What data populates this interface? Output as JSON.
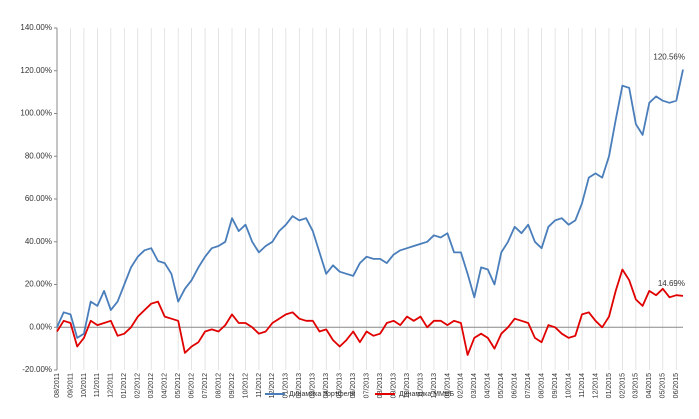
{
  "chart_data": {
    "type": "line",
    "categories": [
      "08/2011",
      null,
      "09/2011",
      null,
      "10/2011",
      null,
      "11/2011",
      null,
      "12/2011",
      null,
      "01/2012",
      null,
      "02/2012",
      null,
      "03/2012",
      null,
      "04/2012",
      null,
      "05/2012",
      null,
      "06/2012",
      null,
      "07/2012",
      null,
      "08/2012",
      null,
      "09/2012",
      null,
      "10/2012",
      null,
      "11/2012",
      null,
      "12/2012",
      null,
      "01/2013",
      null,
      "02/2013",
      null,
      "03/2013",
      null,
      "04/2013",
      null,
      "05/2013",
      null,
      "06/2013",
      null,
      "07/2013",
      null,
      "08/2013",
      null,
      "09/2013",
      null,
      "10/2013",
      null,
      "11/2013",
      null,
      "12/2013",
      null,
      "01/2014",
      null,
      "02/2014",
      null,
      "03/2014",
      null,
      "04/2014",
      null,
      "05/2014",
      null,
      "06/2014",
      null,
      "07/2014",
      null,
      "08/2014",
      null,
      "09/2014",
      null,
      "10/2014",
      null,
      "11/2014",
      null,
      "12/2014",
      null,
      "01/2015",
      null,
      "02/2015",
      null,
      "03/2015",
      null,
      "04/2015",
      null,
      "05/2015",
      null,
      "06/2015",
      null
    ],
    "series": [
      {
        "name": "Динамика портфеля",
        "color": "#4a7ebb",
        "values": [
          0,
          7,
          6,
          -5,
          -3,
          12,
          10,
          17,
          8,
          12,
          20,
          28,
          33,
          36,
          37,
          31,
          30,
          25,
          12,
          18,
          22,
          28,
          33,
          37,
          38,
          40,
          51,
          45,
          48,
          40,
          35,
          38,
          40,
          45,
          48,
          52,
          50,
          51,
          45,
          35,
          25,
          29,
          26,
          25,
          24,
          30,
          33,
          32,
          32,
          30,
          34,
          36,
          37,
          38,
          39,
          40,
          43,
          42,
          44,
          35,
          35,
          25,
          14,
          28,
          27,
          20,
          35,
          40,
          47,
          44,
          48,
          40,
          37,
          47,
          50,
          51,
          48,
          50,
          58,
          70,
          72,
          70,
          80,
          97,
          113,
          112,
          95,
          90,
          105,
          108,
          106,
          105,
          106,
          120.56
        ],
        "value_labels": [
          null,
          null,
          null,
          null,
          null,
          null,
          null,
          null,
          null,
          null,
          null,
          null,
          null,
          null,
          null,
          null,
          null,
          null,
          null,
          null,
          null,
          null,
          null,
          null,
          null,
          null,
          null,
          null,
          null,
          null,
          null,
          null,
          null,
          null,
          null,
          null,
          null,
          null,
          null,
          null,
          null,
          null,
          null,
          null,
          null,
          null,
          null,
          null,
          null,
          null,
          null,
          null,
          null,
          null,
          null,
          null,
          null,
          null,
          null,
          null,
          null,
          null,
          null,
          null,
          null,
          null,
          null,
          null,
          null,
          null,
          null,
          null,
          null,
          null,
          null,
          null,
          null,
          null,
          null,
          null,
          null,
          null,
          null,
          null,
          null,
          null,
          null,
          null,
          null,
          null,
          null,
          null,
          null,
          "120.56%"
        ]
      },
      {
        "name": "Динамика ММВБ",
        "color": "#e00000",
        "values": [
          -2,
          3,
          2,
          -9,
          -5,
          3,
          1,
          2,
          3,
          -4,
          -3,
          0,
          5,
          8,
          11,
          12,
          5,
          4,
          3,
          -12,
          -9,
          -7,
          -2,
          -1,
          -2,
          1,
          6,
          2,
          2,
          0,
          -3,
          -2,
          2,
          4,
          6,
          7,
          4,
          3,
          3,
          -2,
          -1,
          -6,
          -9,
          -6,
          -2,
          -7,
          -2,
          -4,
          -3,
          2,
          3,
          1,
          5,
          3,
          5,
          0,
          3,
          3,
          1,
          3,
          2,
          -13,
          -5,
          -3,
          -5,
          -10,
          -3,
          0,
          4,
          3,
          2,
          -5,
          -7,
          1,
          0,
          -3,
          -5,
          -4,
          6,
          7,
          3,
          0,
          5,
          17,
          27,
          22,
          13,
          10,
          17,
          15,
          18,
          14,
          15,
          14.69
        ],
        "value_labels": [
          null,
          null,
          null,
          null,
          null,
          null,
          null,
          null,
          null,
          null,
          null,
          null,
          null,
          null,
          null,
          null,
          null,
          null,
          null,
          null,
          null,
          null,
          null,
          null,
          null,
          null,
          null,
          null,
          null,
          null,
          null,
          null,
          null,
          null,
          null,
          null,
          null,
          null,
          null,
          null,
          null,
          null,
          null,
          null,
          null,
          null,
          null,
          null,
          null,
          null,
          null,
          null,
          null,
          null,
          null,
          null,
          null,
          null,
          null,
          null,
          null,
          null,
          null,
          null,
          null,
          null,
          null,
          null,
          null,
          null,
          null,
          null,
          null,
          null,
          null,
          null,
          null,
          null,
          null,
          null,
          null,
          null,
          null,
          null,
          null,
          null,
          null,
          null,
          null,
          null,
          null,
          null,
          null,
          "14.69%"
        ]
      }
    ],
    "ylim": [
      -20,
      140
    ],
    "yticks": [
      {
        "value": -20,
        "label": "-20.00%"
      },
      {
        "value": 0,
        "label": "0.00%"
      },
      {
        "value": 20,
        "label": "20.00%"
      },
      {
        "value": 40,
        "label": "40.00%"
      },
      {
        "value": 60,
        "label": "60.00%"
      },
      {
        "value": 80,
        "label": "80.00%"
      },
      {
        "value": 100,
        "label": "100.00%"
      },
      {
        "value": 120,
        "label": "120.00%"
      },
      {
        "value": 140,
        "label": "140.00%"
      }
    ],
    "grid": "x",
    "legend": "bottom"
  }
}
